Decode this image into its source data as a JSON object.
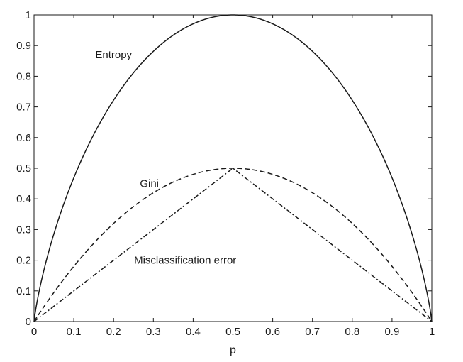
{
  "chart_data": {
    "type": "line",
    "title": "",
    "xlabel": "p",
    "ylabel": "",
    "xlim": [
      0,
      1
    ],
    "ylim": [
      0,
      1
    ],
    "grid": false,
    "legend": "none",
    "x_ticks": [
      "0",
      "0.1",
      "0.2",
      "0.3",
      "0.4",
      "0.5",
      "0.6",
      "0.7",
      "0.8",
      "0.9",
      "1"
    ],
    "y_ticks": [
      "0",
      "0.1",
      "0.2",
      "0.3",
      "0.4",
      "0.5",
      "0.6",
      "0.7",
      "0.8",
      "0.9",
      "1"
    ],
    "x": [
      0,
      0.05,
      0.1,
      0.15,
      0.2,
      0.25,
      0.3,
      0.35,
      0.4,
      0.45,
      0.5,
      0.55,
      0.6,
      0.65,
      0.7,
      0.75,
      0.8,
      0.85,
      0.9,
      0.95,
      1
    ],
    "series": [
      {
        "name": "Entropy",
        "style": "solid",
        "values": [
          0,
          0.286,
          0.469,
          0.61,
          0.722,
          0.811,
          0.881,
          0.934,
          0.971,
          0.993,
          1,
          0.993,
          0.971,
          0.934,
          0.881,
          0.811,
          0.722,
          0.61,
          0.469,
          0.286,
          0
        ]
      },
      {
        "name": "Gini",
        "style": "dashed",
        "values": [
          0,
          0.095,
          0.18,
          0.255,
          0.32,
          0.375,
          0.42,
          0.455,
          0.48,
          0.495,
          0.5,
          0.495,
          0.48,
          0.455,
          0.42,
          0.375,
          0.32,
          0.255,
          0.18,
          0.095,
          0
        ]
      },
      {
        "name": "Misclassification error",
        "style": "dashdot",
        "values": [
          0,
          0.05,
          0.1,
          0.15,
          0.2,
          0.25,
          0.3,
          0.35,
          0.4,
          0.45,
          0.5,
          0.45,
          0.4,
          0.35,
          0.3,
          0.25,
          0.2,
          0.15,
          0.1,
          0.05,
          0
        ]
      }
    ],
    "annotations": [
      {
        "text": "Entropy",
        "series": "Entropy",
        "x": 0.2,
        "y": 0.87
      },
      {
        "text": "Gini",
        "series": "Gini",
        "x": 0.29,
        "y": 0.45
      },
      {
        "text": "Misclassification error",
        "series": "Misclassification error",
        "x": 0.38,
        "y": 0.2
      }
    ],
    "colors": {
      "line": "#1a1a1a",
      "frame": "#1a1a1a",
      "background": "#ffffff"
    }
  }
}
